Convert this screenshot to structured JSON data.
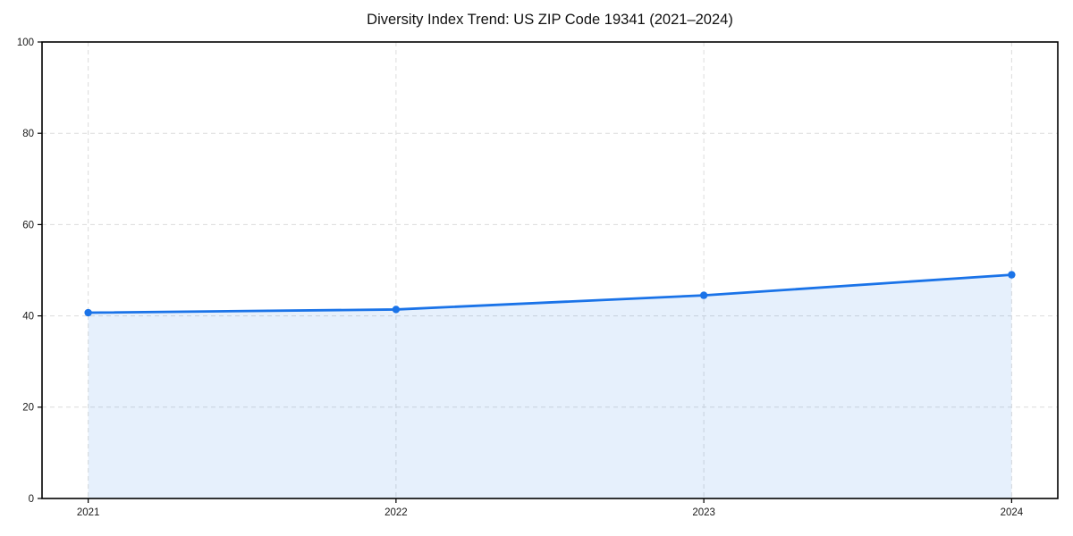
{
  "chart_data": {
    "type": "line",
    "title": "Diversity Index Trend: US ZIP Code 19341 (2021–2024)",
    "categories": [
      "2021",
      "2022",
      "2023",
      "2024"
    ],
    "series": [
      {
        "name": "Diversity Index",
        "values": [
          40.7,
          41.4,
          44.5,
          49.0
        ]
      }
    ],
    "xlabel": "",
    "ylabel": "",
    "ylim": [
      0,
      100
    ],
    "yticks": [
      0,
      20,
      40,
      60,
      80,
      100
    ],
    "grid": true,
    "grid_style": "dashed",
    "legend_position": "none",
    "area_fill": true,
    "marker": "circle",
    "colors": {
      "line": "#1a73e8",
      "marker": "#1a73e8",
      "area": "#1a73e8",
      "area_opacity": 0.11,
      "grid": "#dcdcdc",
      "spine": "#000000",
      "tick_label": "#191919",
      "background": "#ffffff"
    }
  }
}
